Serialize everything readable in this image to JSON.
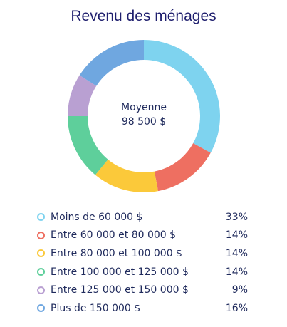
{
  "chart_data": {
    "type": "pie",
    "title": "Revenu des ménages",
    "center_label": "Moyenne",
    "center_value": "98 500 $",
    "categories": [
      "Moins de 60 000 $",
      "Entre 60 000 et 80 000 $",
      "Entre 80 000 et 100 000 $",
      "Entre 100 000 et 125 000 $",
      "Entre 125 000 et 150 000 $",
      "Plus de 150 000 $"
    ],
    "values": [
      33,
      14,
      14,
      14,
      9,
      16
    ],
    "value_labels": [
      "33%",
      "14%",
      "14%",
      "14%",
      "9%",
      "16%"
    ],
    "colors": [
      "#7ed3ef",
      "#ee6f61",
      "#fbc93a",
      "#5ecf9b",
      "#b9a0d2",
      "#6fa7e0"
    ],
    "donut": true,
    "legend_position": "bottom"
  }
}
